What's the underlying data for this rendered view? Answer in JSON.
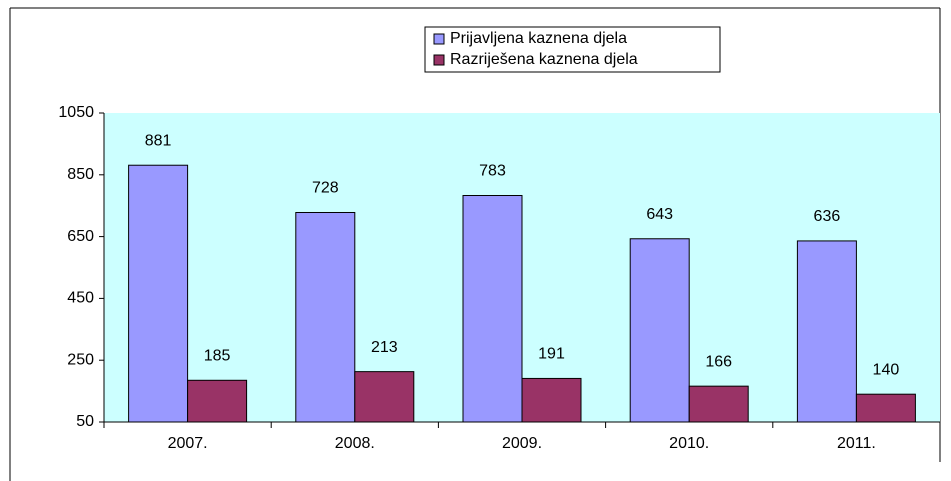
{
  "chart_data": {
    "type": "bar",
    "categories": [
      "2007.",
      "2008.",
      "2009.",
      "2010.",
      "2011."
    ],
    "series": [
      {
        "name": "Prijavljena kaznena djela",
        "color": "#9999ff",
        "values": [
          881,
          728,
          783,
          643,
          636
        ]
      },
      {
        "name": "Razriješena kaznena djela",
        "color": "#993366",
        "values": [
          185,
          213,
          191,
          166,
          140
        ]
      }
    ],
    "ylim": [
      50,
      1050
    ],
    "yticks": [
      50,
      250,
      450,
      650,
      850,
      1050
    ],
    "plot_background": "#ccffff",
    "legend": "top"
  }
}
